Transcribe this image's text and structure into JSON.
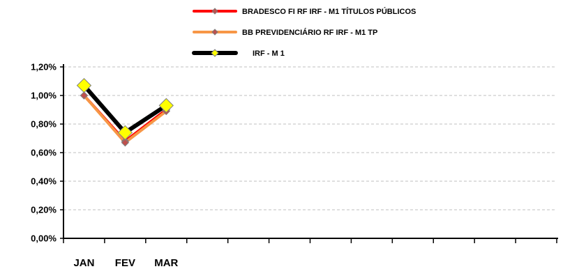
{
  "chart_data": {
    "type": "line",
    "title": "",
    "xlabel": "",
    "ylabel": "",
    "categories": [
      "JAN",
      "FEV",
      "MAR"
    ],
    "x_slots": 12,
    "ylim": [
      0,
      1.2
    ],
    "yticks": [
      "0,00%",
      "0,20%",
      "0,40%",
      "0,60%",
      "0,80%",
      "1,00%",
      "1,20%"
    ],
    "grid": true,
    "legend_position": "top",
    "series": [
      {
        "name": "BRADESCO FI RF IRF - M1 TÍTULOS PÚBLICOS",
        "values": [
          1.0,
          0.68,
          0.9
        ],
        "color": "#ff0000",
        "marker": "#c0504d",
        "marker_size": "small"
      },
      {
        "name": "BB PREVIDENCIÁRIO RF IRF - M1 TP",
        "values": [
          1.0,
          0.67,
          0.89
        ],
        "color": "#f79646",
        "marker": "#c0504d",
        "marker_size": "small"
      },
      {
        "name": "IRF - M 1",
        "values": [
          1.07,
          0.74,
          0.93
        ],
        "color": "#000000",
        "marker": "#ffff00",
        "marker_size": "large"
      }
    ]
  }
}
